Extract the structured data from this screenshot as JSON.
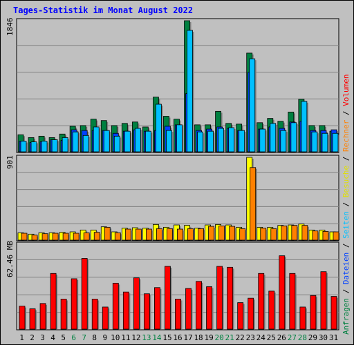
{
  "title": "Tages-Statistik im Monat August 2022",
  "colors": {
    "anfragen": "#008040",
    "dateien": "#0040FF",
    "seiten": "#00C0FF",
    "besuche": "#FFFF00",
    "rechner": "#FF8000",
    "volumen": "#FF0000",
    "day_weekday": "#000000",
    "day_weekend": "#008040",
    "background": "#C0C0C0"
  },
  "chart_data": [
    {
      "type": "bar",
      "name": "hits-files-pages",
      "ymax_label": "1846",
      "ylim": [
        0,
        1846
      ],
      "categories": [
        "1",
        "2",
        "3",
        "4",
        "5",
        "6",
        "7",
        "8",
        "9",
        "10",
        "11",
        "12",
        "13",
        "14",
        "15",
        "16",
        "17",
        "18",
        "19",
        "20",
        "21",
        "22",
        "23",
        "24",
        "25",
        "26",
        "27",
        "28",
        "29",
        "30",
        "31"
      ],
      "series": [
        {
          "name": "Anfragen",
          "values": [
            240,
            200,
            220,
            200,
            250,
            360,
            370,
            460,
            440,
            370,
            400,
            420,
            350,
            770,
            500,
            460,
            1846,
            380,
            380,
            570,
            400,
            390,
            1390,
            410,
            470,
            430,
            560,
            740,
            370,
            370,
            290
          ]
        },
        {
          "name": "Dateien",
          "values": [
            150,
            130,
            140,
            170,
            160,
            310,
            300,
            300,
            300,
            260,
            290,
            310,
            290,
            300,
            360,
            380,
            820,
            300,
            320,
            350,
            330,
            300,
            1120,
            320,
            350,
            330,
            420,
            430,
            300,
            300,
            310
          ]
        },
        {
          "name": "Seiten",
          "values": [
            150,
            140,
            150,
            170,
            200,
            280,
            230,
            350,
            300,
            220,
            290,
            330,
            290,
            670,
            300,
            380,
            1710,
            280,
            290,
            330,
            340,
            300,
            1310,
            320,
            400,
            300,
            410,
            710,
            280,
            260,
            260
          ]
        }
      ]
    },
    {
      "type": "bar",
      "name": "visits-sites",
      "ymax_label": "901",
      "ylim": [
        0,
        901
      ],
      "categories": [
        "1",
        "2",
        "3",
        "4",
        "5",
        "6",
        "7",
        "8",
        "9",
        "10",
        "11",
        "12",
        "13",
        "14",
        "15",
        "16",
        "17",
        "18",
        "19",
        "20",
        "21",
        "22",
        "23",
        "24",
        "25",
        "26",
        "27",
        "28",
        "29",
        "30",
        "31"
      ],
      "series": [
        {
          "name": "Besuche",
          "values": [
            80,
            65,
            80,
            80,
            85,
            90,
            110,
            110,
            145,
            90,
            130,
            135,
            130,
            170,
            140,
            165,
            160,
            130,
            165,
            170,
            165,
            140,
            901,
            140,
            140,
            160,
            165,
            175,
            110,
            110,
            90
          ]
        },
        {
          "name": "Rechner",
          "values": [
            75,
            55,
            70,
            75,
            75,
            75,
            80,
            85,
            140,
            80,
            120,
            120,
            120,
            125,
            125,
            120,
            125,
            125,
            150,
            155,
            150,
            125,
            790,
            130,
            125,
            155,
            160,
            160,
            100,
            95,
            90
          ]
        }
      ]
    },
    {
      "type": "bar",
      "name": "volume",
      "ymax_label": "62.46 MB",
      "ylim": [
        0,
        96
      ],
      "categories": [
        "1",
        "2",
        "3",
        "4",
        "5",
        "6",
        "7",
        "8",
        "9",
        "10",
        "11",
        "12",
        "13",
        "14",
        "15",
        "16",
        "17",
        "18",
        "19",
        "20",
        "21",
        "22",
        "23",
        "24",
        "25",
        "26",
        "27",
        "28",
        "29",
        "30",
        "31"
      ],
      "series": [
        {
          "name": "Volumen",
          "values": [
            26,
            23,
            29,
            63,
            34,
            57,
            80,
            34,
            25,
            52,
            42,
            58,
            40,
            47,
            71,
            34,
            46,
            54,
            48,
            71,
            70,
            30,
            35,
            63,
            43,
            83,
            63,
            25,
            38,
            65,
            37
          ]
        }
      ]
    }
  ],
  "day_colors": [
    "wd",
    "wd",
    "wd",
    "wd",
    "wd",
    "we",
    "we",
    "wd",
    "wd",
    "wd",
    "wd",
    "wd",
    "we",
    "we",
    "wd",
    "wd",
    "wd",
    "wd",
    "wd",
    "we",
    "we",
    "wd",
    "wd",
    "wd",
    "wd",
    "wd",
    "we",
    "we",
    "wd",
    "wd",
    "wd"
  ],
  "right_labels": {
    "top": [
      {
        "text": "Anfragen",
        "color": "#008040"
      },
      {
        "text": " / ",
        "color": "#000000"
      },
      {
        "text": "Dateien",
        "color": "#0040FF"
      },
      {
        "text": " / ",
        "color": "#000000"
      },
      {
        "text": "Seiten",
        "color": "#00C0FF"
      },
      {
        "text": " / ",
        "color": "#000000"
      },
      {
        "text": "Besuche",
        "color": "#E0E000"
      },
      {
        "text": " / ",
        "color": "#000000"
      },
      {
        "text": "Rechner",
        "color": "#FF8000"
      },
      {
        "text": " / ",
        "color": "#000000"
      },
      {
        "text": "Volumen",
        "color": "#FF0000"
      }
    ]
  }
}
